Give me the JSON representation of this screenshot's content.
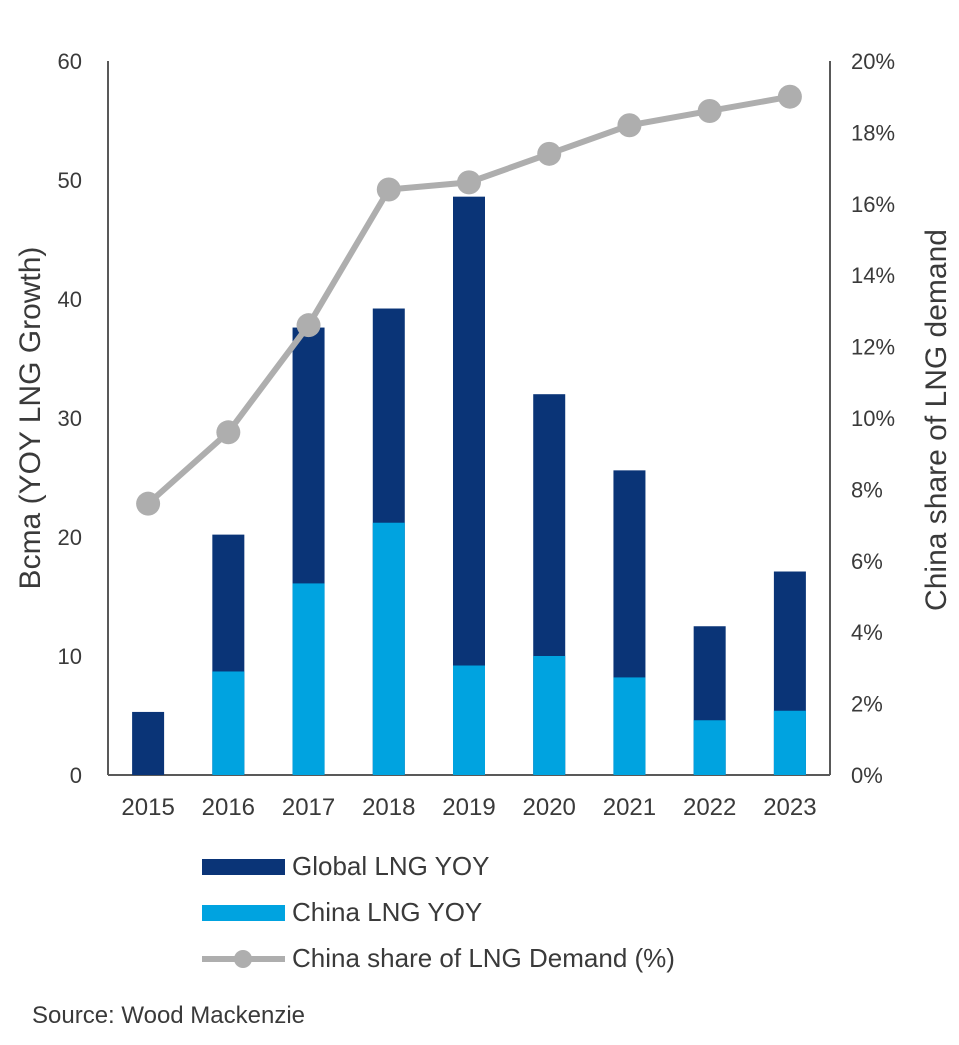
{
  "chart_data": {
    "type": "bar",
    "title": "",
    "categories": [
      "2015",
      "2016",
      "2017",
      "2018",
      "2019",
      "2020",
      "2021",
      "2022",
      "2023"
    ],
    "series": [
      {
        "name": "Global LNG YOY",
        "kind": "bar",
        "axis": "left",
        "color": "#0a3477",
        "values": [
          5.3,
          20.2,
          37.6,
          39.2,
          48.6,
          32.0,
          25.6,
          12.5,
          17.1
        ]
      },
      {
        "name": "China LNG YOY",
        "kind": "bar",
        "axis": "left",
        "color": "#00a3e0",
        "values": [
          0,
          8.7,
          16.1,
          21.2,
          9.2,
          10.0,
          8.2,
          4.6,
          5.4
        ]
      },
      {
        "name": "China share of LNG Demand (%)",
        "kind": "line",
        "axis": "right",
        "color": "#aeaeae",
        "values": [
          7.6,
          9.6,
          12.6,
          16.4,
          16.6,
          17.4,
          18.2,
          18.6,
          19.0
        ]
      }
    ],
    "ylabel": "Bcma (YOY  LNG Growth)",
    "y2label": "China share of LNG demand",
    "ylim": [
      0,
      60
    ],
    "y2lim": [
      0,
      20
    ],
    "yticks": [
      "0",
      "10",
      "20",
      "30",
      "40",
      "50",
      "60"
    ],
    "y2ticks": [
      "0%",
      "2%",
      "4%",
      "6%",
      "8%",
      "10%",
      "12%",
      "14%",
      "16%",
      "18%",
      "20%"
    ],
    "grid": false,
    "legend_position": "bottom"
  },
  "legend": {
    "global": "Global LNG YOY",
    "china": "China LNG YOY",
    "share": "China share of LNG Demand (%)"
  },
  "source": "Source: Wood Mackenzie",
  "colors": {
    "global": "#0a3477",
    "china": "#00a3e0",
    "share": "#aeaeae"
  }
}
